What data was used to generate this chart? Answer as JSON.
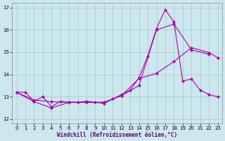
{
  "xlabel": "Windchill (Refroidissement éolien,°C)",
  "background_color": "#cce8ee",
  "grid_color": "#aacccc",
  "line_color": "#aa00aa",
  "xlim": [
    -0.5,
    23.5
  ],
  "ylim": [
    11.8,
    17.2
  ],
  "yticks": [
    12,
    13,
    14,
    15,
    16,
    17
  ],
  "xticks": [
    0,
    1,
    2,
    3,
    4,
    5,
    6,
    7,
    8,
    9,
    10,
    11,
    12,
    13,
    14,
    15,
    16,
    17,
    18,
    19,
    20,
    21,
    22,
    23
  ],
  "series": [
    {
      "x": [
        0,
        1,
        2,
        3,
        4,
        5,
        6,
        7,
        8,
        9,
        10,
        11,
        12,
        13,
        14,
        15,
        16,
        17,
        18,
        19,
        20,
        21,
        22,
        23
      ],
      "y": [
        13.2,
        13.2,
        12.8,
        13.0,
        12.55,
        12.8,
        12.75,
        12.75,
        12.8,
        12.75,
        12.7,
        12.9,
        13.1,
        13.3,
        13.85,
        14.82,
        16.05,
        16.9,
        16.35,
        13.7,
        13.8,
        13.3,
        13.1,
        13.0
      ]
    },
    {
      "x": [
        0,
        2,
        4,
        6,
        8,
        10,
        12,
        14,
        16,
        18,
        20,
        22
      ],
      "y": [
        13.2,
        12.78,
        12.5,
        12.75,
        12.75,
        12.75,
        13.05,
        13.5,
        16.0,
        16.25,
        15.1,
        14.9
      ]
    },
    {
      "x": [
        0,
        2,
        4,
        6,
        8,
        10,
        12,
        14,
        16,
        18,
        20,
        22,
        23
      ],
      "y": [
        13.2,
        12.85,
        12.78,
        12.75,
        12.75,
        12.75,
        13.05,
        13.82,
        14.05,
        14.58,
        15.2,
        14.98,
        14.75
      ]
    }
  ]
}
